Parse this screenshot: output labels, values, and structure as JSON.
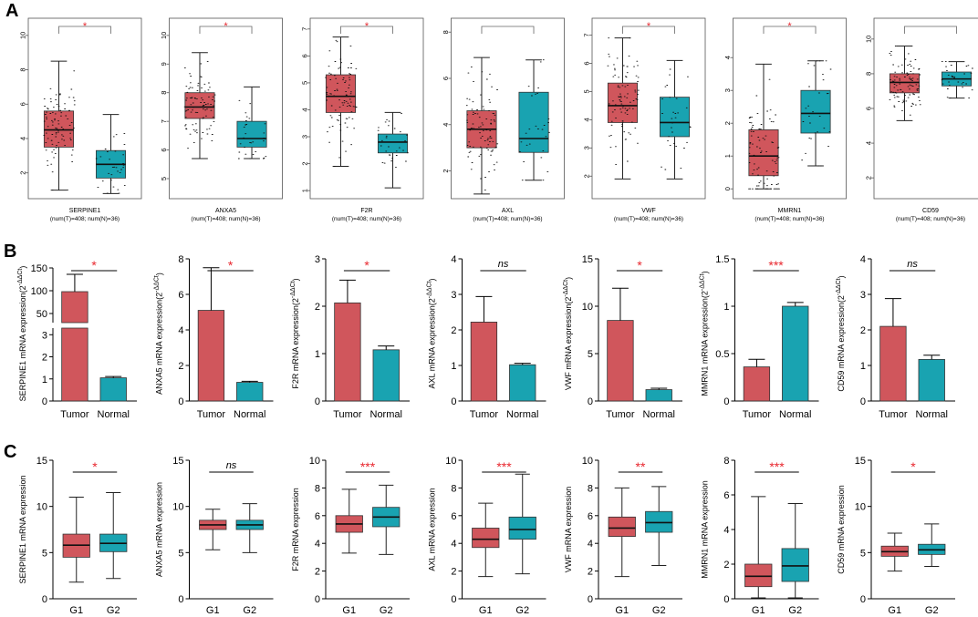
{
  "panel_labels": {
    "a": "A",
    "b": "B",
    "c": "C"
  },
  "colors": {
    "tumor": "#d0565c",
    "normal": "#19a3b1",
    "sig_red": "#e8262d",
    "axis": "#000000",
    "box_outline": "#333333"
  },
  "chart_data": {
    "panel_A": {
      "type": "box",
      "sample_caption": "(num(T)=408; num(N)=36)",
      "plots": [
        {
          "gene": "SERPINE1",
          "yticks": [
            2,
            4,
            6,
            8,
            10
          ],
          "ylim": [
            0.5,
            11
          ],
          "sig": "*",
          "tumor": {
            "min": 1.0,
            "q1": 3.5,
            "median": 4.5,
            "q3": 5.6,
            "max": 8.5
          },
          "normal": {
            "min": 0.8,
            "q1": 1.7,
            "median": 2.5,
            "q3": 3.3,
            "max": 5.4
          }
        },
        {
          "gene": "ANXA5",
          "yticks": [
            5,
            6,
            7,
            8,
            9,
            10
          ],
          "ylim": [
            4.3,
            10.6
          ],
          "sig": "*",
          "tumor": {
            "min": 5.7,
            "q1": 7.1,
            "median": 7.5,
            "q3": 8.0,
            "max": 9.4
          },
          "normal": {
            "min": 5.7,
            "q1": 6.1,
            "median": 6.4,
            "q3": 7.0,
            "max": 8.2
          }
        },
        {
          "gene": "F2R",
          "yticks": [
            1,
            2,
            3,
            4,
            5,
            6,
            7
          ],
          "ylim": [
            0.7,
            7.4
          ],
          "sig": "*",
          "tumor": {
            "min": 1.9,
            "q1": 3.9,
            "median": 4.5,
            "q3": 5.3,
            "max": 6.7
          },
          "normal": {
            "min": 1.1,
            "q1": 2.4,
            "median": 2.8,
            "q3": 3.1,
            "max": 3.9
          }
        },
        {
          "gene": "AXL",
          "yticks": [
            2,
            4,
            6,
            8
          ],
          "ylim": [
            0.8,
            8.6
          ],
          "sig": "",
          "tumor": {
            "min": 1.0,
            "q1": 3.0,
            "median": 3.8,
            "q3": 4.6,
            "max": 6.9
          },
          "normal": {
            "min": 1.6,
            "q1": 2.8,
            "median": 3.4,
            "q3": 5.4,
            "max": 6.8
          }
        },
        {
          "gene": "VWF",
          "yticks": [
            2,
            3,
            4,
            5,
            6,
            7
          ],
          "ylim": [
            1.2,
            7.6
          ],
          "sig": "*",
          "tumor": {
            "min": 1.9,
            "q1": 3.9,
            "median": 4.5,
            "q3": 5.3,
            "max": 6.9
          },
          "normal": {
            "min": 1.9,
            "q1": 3.4,
            "median": 3.9,
            "q3": 4.8,
            "max": 6.1
          }
        },
        {
          "gene": "MMRN1",
          "yticks": [
            0,
            1,
            2,
            3,
            4
          ],
          "ylim": [
            -0.3,
            5.2
          ],
          "sig": "*",
          "tumor": {
            "min": 0.0,
            "q1": 0.4,
            "median": 1.0,
            "q3": 1.8,
            "max": 3.8
          },
          "normal": {
            "min": 0.7,
            "q1": 1.7,
            "median": 2.3,
            "q3": 3.0,
            "max": 3.9
          }
        },
        {
          "gene": "CD59",
          "yticks": [
            2,
            4,
            6,
            8,
            10
          ],
          "ylim": [
            0.8,
            11.2
          ],
          "sig": "",
          "tumor": {
            "min": 5.3,
            "q1": 6.9,
            "median": 7.5,
            "q3": 8.0,
            "max": 9.6
          },
          "normal": {
            "min": 6.6,
            "q1": 7.3,
            "median": 7.7,
            "q3": 8.1,
            "max": 8.7
          }
        }
      ]
    },
    "panel_B": {
      "type": "bar",
      "categories": [
        "Tumor",
        "Normal"
      ],
      "ylabel_suffix": "mRNA expression(2",
      "ylabel_sup": "-ΔΔCt",
      "plots": [
        {
          "gene": "SERPINE1",
          "sig": "*",
          "values": [
            98,
            1.05
          ],
          "errors": [
            38,
            0.06
          ],
          "broken": true,
          "upper_ticks": [
            50,
            100,
            150
          ],
          "upper_range": [
            30,
            150
          ],
          "lower_ticks": [
            0,
            1,
            2,
            3
          ],
          "lower_range": [
            0,
            3.3
          ]
        },
        {
          "gene": "ANXA5",
          "sig": "*",
          "values": [
            5.1,
            1.05
          ],
          "errors": [
            2.4,
            0.06
          ],
          "yticks": [
            0,
            2,
            4,
            6,
            8
          ],
          "ylim": [
            0,
            8
          ]
        },
        {
          "gene": "F2R",
          "sig": "*",
          "values": [
            2.07,
            1.08
          ],
          "errors": [
            0.48,
            0.08
          ],
          "yticks": [
            0,
            1,
            2,
            3
          ],
          "ylim": [
            0,
            3
          ]
        },
        {
          "gene": "AXL",
          "sig": "ns",
          "values": [
            2.22,
            1.02
          ],
          "errors": [
            0.72,
            0.04
          ],
          "yticks": [
            0,
            1,
            2,
            3,
            4
          ],
          "ylim": [
            0,
            4
          ]
        },
        {
          "gene": "VWF",
          "sig": "*",
          "values": [
            8.5,
            1.2
          ],
          "errors": [
            3.4,
            0.15
          ],
          "yticks": [
            0,
            5,
            10,
            15
          ],
          "ylim": [
            0,
            15
          ]
        },
        {
          "gene": "MMRN1",
          "sig": "***",
          "values": [
            0.36,
            1.0
          ],
          "errors": [
            0.08,
            0.04
          ],
          "yticks": [
            0.0,
            0.5,
            1.0,
            1.5
          ],
          "ylim": [
            0,
            1.5
          ]
        },
        {
          "gene": "CD59",
          "sig": "ns",
          "values": [
            2.1,
            1.17
          ],
          "errors": [
            0.78,
            0.12
          ],
          "yticks": [
            0,
            1,
            2,
            3,
            4
          ],
          "ylim": [
            0,
            4
          ]
        }
      ]
    },
    "panel_C": {
      "type": "box",
      "categories": [
        "G1",
        "G2"
      ],
      "ylabel_suffix": "mRNA expression",
      "plots": [
        {
          "gene": "SERPINE1",
          "sig": "*",
          "yticks": [
            0,
            5,
            10,
            15
          ],
          "ylim": [
            0,
            15
          ],
          "g1": {
            "min": 1.8,
            "q1": 4.5,
            "median": 5.8,
            "q3": 7.0,
            "max": 11.0
          },
          "g2": {
            "min": 2.2,
            "q1": 5.1,
            "median": 6.0,
            "q3": 7.0,
            "max": 11.5
          }
        },
        {
          "gene": "ANXA5",
          "sig": "ns",
          "yticks": [
            0,
            5,
            10,
            15
          ],
          "ylim": [
            0,
            15
          ],
          "g1": {
            "min": 5.3,
            "q1": 7.5,
            "median": 8.0,
            "q3": 8.5,
            "max": 9.7
          },
          "g2": {
            "min": 5.0,
            "q1": 7.5,
            "median": 8.0,
            "q3": 8.5,
            "max": 10.3
          }
        },
        {
          "gene": "F2R",
          "sig": "***",
          "yticks": [
            0,
            2,
            4,
            6,
            8,
            10
          ],
          "ylim": [
            0,
            10
          ],
          "g1": {
            "min": 3.3,
            "q1": 4.8,
            "median": 5.4,
            "q3": 6.0,
            "max": 7.9
          },
          "g2": {
            "min": 3.2,
            "q1": 5.2,
            "median": 5.9,
            "q3": 6.6,
            "max": 8.2
          }
        },
        {
          "gene": "AXL",
          "sig": "***",
          "yticks": [
            0,
            2,
            4,
            6,
            8,
            10
          ],
          "ylim": [
            0,
            10
          ],
          "g1": {
            "min": 1.6,
            "q1": 3.7,
            "median": 4.3,
            "q3": 5.1,
            "max": 6.9
          },
          "g2": {
            "min": 1.8,
            "q1": 4.3,
            "median": 5.0,
            "q3": 5.9,
            "max": 9.0
          }
        },
        {
          "gene": "VWF",
          "sig": "**",
          "yticks": [
            0,
            2,
            4,
            6,
            8,
            10
          ],
          "ylim": [
            0,
            10
          ],
          "g1": {
            "min": 1.6,
            "q1": 4.5,
            "median": 5.1,
            "q3": 5.9,
            "max": 8.0
          },
          "g2": {
            "min": 2.4,
            "q1": 4.8,
            "median": 5.5,
            "q3": 6.3,
            "max": 8.1
          }
        },
        {
          "gene": "MMRN1",
          "sig": "***",
          "yticks": [
            0,
            2,
            4,
            6,
            8
          ],
          "ylim": [
            0,
            8
          ],
          "g1": {
            "min": 0.05,
            "q1": 0.7,
            "median": 1.3,
            "q3": 2.0,
            "max": 5.9
          },
          "g2": {
            "min": 0.05,
            "q1": 1.0,
            "median": 1.9,
            "q3": 2.9,
            "max": 5.5
          }
        },
        {
          "gene": "CD59",
          "sig": "*",
          "yticks": [
            0,
            5,
            10,
            15
          ],
          "ylim": [
            0,
            15
          ],
          "g1": {
            "min": 3.0,
            "q1": 4.6,
            "median": 5.1,
            "q3": 5.7,
            "max": 7.1
          },
          "g2": {
            "min": 3.5,
            "q1": 4.8,
            "median": 5.3,
            "q3": 5.9,
            "max": 8.1
          }
        }
      ]
    }
  }
}
